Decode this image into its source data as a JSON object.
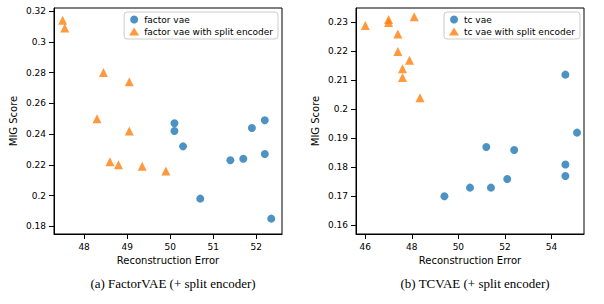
{
  "chart_data": [
    {
      "type": "scatter",
      "title": "(a) FactorVAE (+ split encoder)",
      "x_label": "Reconstruction Error",
      "y_label": "MIG Score",
      "xlim": [
        47.3,
        52.6
      ],
      "xticks": [
        48,
        49,
        50,
        51,
        52
      ],
      "ylim": [
        0.175,
        0.322
      ],
      "yticks": [
        0.18,
        0.2,
        0.22,
        0.24,
        0.26,
        0.28,
        0.3,
        0.32
      ],
      "grid": false,
      "legend": "upper right",
      "series": [
        {
          "name": "factor vae",
          "color": "#1f77b4",
          "marker": "circle",
          "x": [
            50.1,
            50.1,
            50.3,
            50.7,
            51.4,
            51.7,
            51.9,
            52.2,
            52.2,
            52.35
          ],
          "y": [
            0.247,
            0.242,
            0.232,
            0.198,
            0.223,
            0.224,
            0.244,
            0.249,
            0.227,
            0.185
          ]
        },
        {
          "name": "factor vae with split encoder",
          "color": "#ff7f0e",
          "marker": "triangle",
          "x": [
            47.5,
            47.55,
            48.45,
            48.3,
            48.6,
            48.8,
            49.05,
            49.05,
            49.35,
            49.9
          ],
          "y": [
            0.314,
            0.309,
            0.28,
            0.25,
            0.222,
            0.22,
            0.274,
            0.242,
            0.219,
            0.216
          ]
        }
      ]
    },
    {
      "type": "scatter",
      "title": "(b) TCVAE (+ split encoder)",
      "x_label": "Reconstruction Error",
      "y_label": "MIG Score",
      "xlim": [
        45.6,
        55.4
      ],
      "xticks": [
        46,
        48,
        50,
        52,
        54
      ],
      "ylim": [
        0.157,
        0.235
      ],
      "yticks": [
        0.16,
        0.17,
        0.18,
        0.19,
        0.2,
        0.21,
        0.22,
        0.23
      ],
      "grid": false,
      "legend": "upper right",
      "series": [
        {
          "name": "tc vae",
          "color": "#1f77b4",
          "marker": "circle",
          "x": [
            49.4,
            50.5,
            51.2,
            51.4,
            52.1,
            52.4,
            54.6,
            54.6,
            54.6,
            55.1
          ],
          "y": [
            0.17,
            0.173,
            0.187,
            0.173,
            0.176,
            0.186,
            0.212,
            0.181,
            0.177,
            0.192
          ]
        },
        {
          "name": "tc vae with split encoder",
          "color": "#ff7f0e",
          "marker": "triangle",
          "x": [
            46.0,
            47.0,
            47.0,
            47.4,
            47.4,
            47.6,
            47.6,
            47.9,
            48.1,
            48.35
          ],
          "y": [
            0.229,
            0.23,
            0.231,
            0.226,
            0.22,
            0.214,
            0.211,
            0.217,
            0.232,
            0.204
          ]
        }
      ]
    }
  ]
}
